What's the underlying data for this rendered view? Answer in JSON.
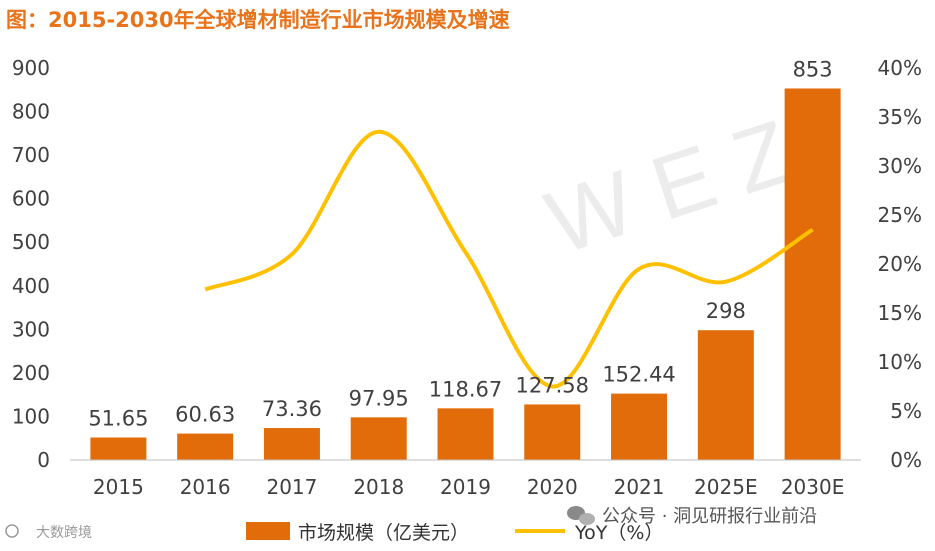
{
  "title": "图：2015-2030年全球增材制造行业市场规模及增速",
  "watermark": "W E Z",
  "footer": {
    "source": "公众号 · 洞见研报行业前沿",
    "corner": "大数跨境"
  },
  "colors": {
    "bar": "#e36c0a",
    "line": "#ffc000",
    "title": "#e8731a",
    "text": "#404040"
  },
  "chart_data": {
    "type": "bar",
    "categories": [
      "2015",
      "2016",
      "2017",
      "2018",
      "2019",
      "2020",
      "2021",
      "2025E",
      "2030E"
    ],
    "series": [
      {
        "name": "市场规模（亿美元）",
        "type": "bar",
        "axis": "left",
        "values": [
          51.65,
          60.63,
          73.36,
          97.95,
          118.67,
          127.58,
          152.44,
          298,
          853
        ],
        "labels": [
          "51.65",
          "60.63",
          "73.36",
          "97.95",
          "118.67",
          "127.58",
          "152.44",
          "298",
          "853"
        ]
      },
      {
        "name": "YoY（%）",
        "type": "line",
        "axis": "right",
        "values": [
          null,
          17.4,
          21.0,
          33.5,
          21.2,
          7.5,
          19.5,
          18.2,
          23.5
        ]
      }
    ],
    "y_left": {
      "ticks": [
        "0",
        "100",
        "200",
        "300",
        "400",
        "500",
        "600",
        "700",
        "800",
        "900"
      ],
      "ylim": [
        0,
        900
      ]
    },
    "y_right": {
      "ticks": [
        "0%",
        "5%",
        "10%",
        "15%",
        "20%",
        "25%",
        "30%",
        "35%",
        "40%"
      ],
      "ylim": [
        0,
        40
      ]
    },
    "grid": false,
    "legend_position": "bottom"
  }
}
